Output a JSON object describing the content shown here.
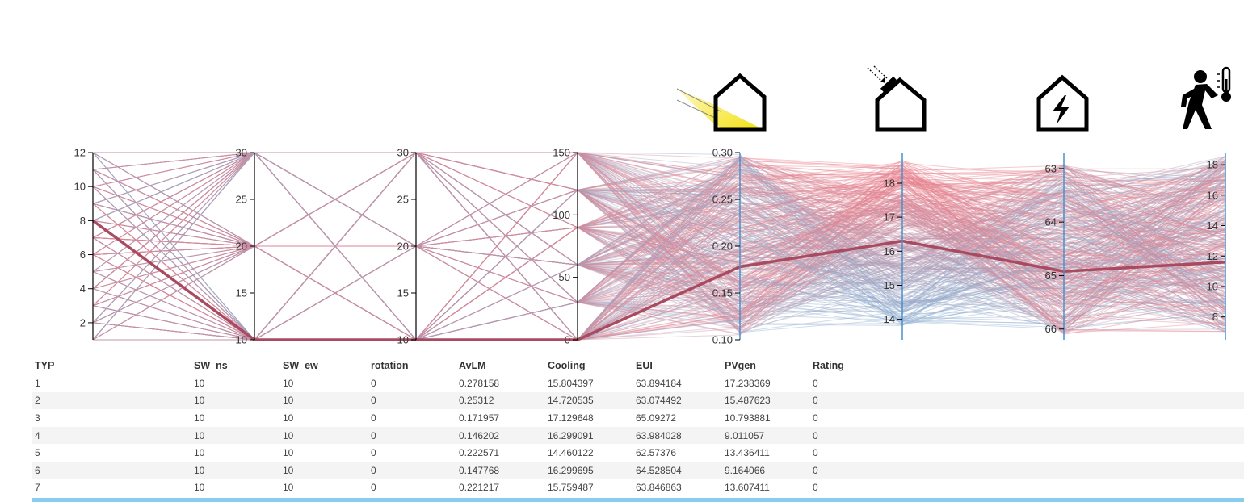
{
  "chart_data": {
    "type": "parallel-coordinates",
    "axes": [
      {
        "key": "TYP",
        "range": [
          1,
          12
        ],
        "ticks": [
          2,
          4,
          6,
          8,
          10,
          12
        ],
        "color": "#000000"
      },
      {
        "key": "SW_ns",
        "range": [
          10,
          30
        ],
        "ticks": [
          10,
          15,
          20,
          25,
          30
        ],
        "color": "#000000"
      },
      {
        "key": "SW_ew",
        "range": [
          10,
          30
        ],
        "ticks": [
          10,
          15,
          20,
          25,
          30
        ],
        "color": "#000000"
      },
      {
        "key": "rotation",
        "range": [
          0,
          150
        ],
        "ticks": [
          0,
          50,
          100,
          150
        ],
        "color": "#000000"
      },
      {
        "key": "AvLM",
        "range": [
          0.1,
          0.3
        ],
        "ticks": [
          0.1,
          0.15,
          0.2,
          0.25,
          0.3
        ],
        "tick_labels": [
          "0.10",
          "0.15",
          "0.20",
          "0.25",
          "0.30"
        ],
        "icon": "daylight-house-icon",
        "color": "#4a90c8"
      },
      {
        "key": "Cooling",
        "range": [
          13.4,
          18.9
        ],
        "ticks": [
          14,
          15,
          16,
          17,
          18
        ],
        "icon": "shaded-house-icon",
        "color": "#4a90c8"
      },
      {
        "key": "EUI",
        "range": [
          66.2,
          62.7
        ],
        "ticks": [
          63,
          64,
          65,
          66
        ],
        "icon": "energy-house-icon",
        "color": "#4a90c8"
      },
      {
        "key": "PVgen",
        "range": [
          6.5,
          18.8
        ],
        "ticks": [
          8,
          10,
          12,
          14,
          16,
          18
        ],
        "icon": "walking-comfort-icon",
        "color": "#4a90c8"
      }
    ],
    "highlight": {
      "TYP": 8,
      "SW_ns": 10,
      "SW_ew": 10,
      "rotation": 0,
      "AvLM": 0.178,
      "Cooling": 16.3,
      "EUI": 64.92,
      "PVgen": 11.6
    },
    "typ_values": [
      1,
      2,
      3,
      4,
      5,
      6,
      7,
      8,
      9,
      10,
      11,
      12
    ],
    "sw_values": [
      10,
      20,
      30
    ],
    "rotation_values": [
      0,
      30,
      60,
      90,
      120,
      150
    ],
    "line_colors": {
      "low": "#8faed0",
      "high": "#e8808c",
      "highlight": "#a84a60"
    },
    "color_by": "Cooling"
  },
  "table": {
    "columns": [
      "TYP",
      "SW_ns",
      "SW_ew",
      "rotation",
      "AvLM",
      "Cooling",
      "EUI",
      "PVgen",
      "Rating"
    ],
    "rows": [
      [
        "1",
        "10",
        "10",
        "0",
        "0.278158",
        "15.804397",
        "63.894184",
        "17.238369",
        "0"
      ],
      [
        "2",
        "10",
        "10",
        "0",
        "0.25312",
        "14.720535",
        "63.074492",
        "15.487623",
        "0"
      ],
      [
        "3",
        "10",
        "10",
        "0",
        "0.171957",
        "17.129648",
        "65.09272",
        "10.793881",
        "0"
      ],
      [
        "4",
        "10",
        "10",
        "0",
        "0.146202",
        "16.299091",
        "63.984028",
        "9.011057",
        "0"
      ],
      [
        "5",
        "10",
        "10",
        "0",
        "0.222571",
        "14.460122",
        "62.57376",
        "13.436411",
        "0"
      ],
      [
        "6",
        "10",
        "10",
        "0",
        "0.147768",
        "16.299695",
        "64.528504",
        "9.164066",
        "0"
      ],
      [
        "7",
        "10",
        "10",
        "0",
        "0.221217",
        "15.759487",
        "63.846863",
        "13.607411",
        "0"
      ]
    ]
  }
}
